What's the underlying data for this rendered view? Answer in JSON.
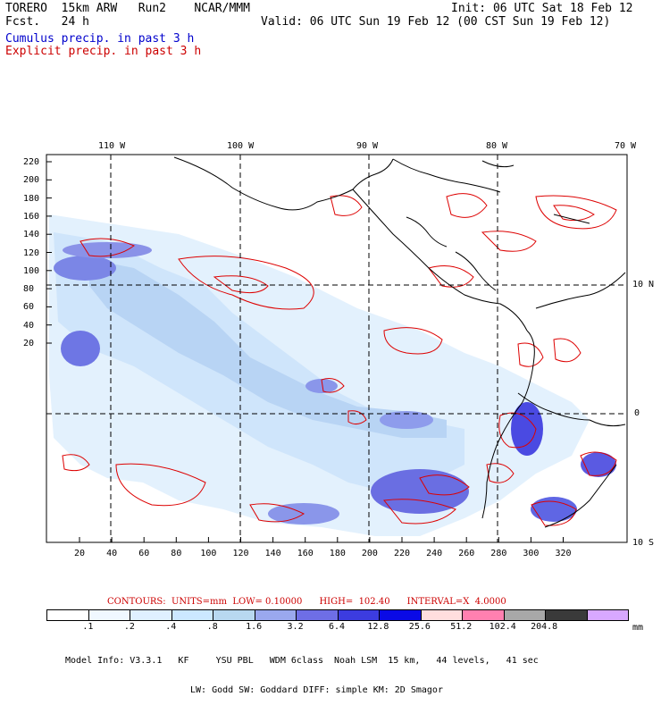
{
  "header": {
    "title_left": "TORERO  15km ARW   Run2    NCAR/MMM",
    "forecast": "Fcst.   24 h",
    "init": "Init: 06 UTC Sat 18 Feb 12",
    "valid": "Valid: 06 UTC Sun 19 Feb 12 (00 CST Sun 19 Feb 12)",
    "line_cumulus": "Cumulus precip. in past 3 h",
    "line_explicit": "Explicit precip. in past 3 h"
  },
  "axes": {
    "top_longitudes": [
      "110 W",
      "100 W",
      "90 W",
      "80 W",
      "70 W"
    ],
    "right_latitudes": [
      "10 N",
      "0",
      "10 S"
    ],
    "y_ticks": [
      "220",
      "200",
      "180",
      "160",
      "140",
      "120",
      "100",
      "80",
      "60",
      "40",
      "20"
    ],
    "x_ticks": [
      "20",
      "40",
      "60",
      "80",
      "100",
      "120",
      "140",
      "160",
      "180",
      "200",
      "220",
      "240",
      "260",
      "280",
      "300",
      "320"
    ]
  },
  "contours": {
    "label": "CONTOURS:  UNITS=mm  LOW= 0.10000      HIGH=  102.40      INTERVAL=X  4.0000"
  },
  "colorbar": {
    "colors": [
      "#ffffff",
      "#f0f8ff",
      "#e0f0ff",
      "#cce8ff",
      "#b8d8f0",
      "#9aa8ee",
      "#6e6ee6",
      "#3c3ce0",
      "#0a0ae6",
      "#ffdede",
      "#ff80b0",
      "#a8a8a8",
      "#3a3a3a",
      "#d8a8ff"
    ],
    "labels": [
      ".1",
      ".2",
      ".4",
      ".8",
      "1.6",
      "3.2",
      "6.4",
      "12.8",
      "25.6",
      "51.2",
      "102.4",
      "204.8"
    ],
    "unit": "mm"
  },
  "model_info": {
    "line1": "Model Info: V3.3.1   KF     YSU PBL   WDM 6class  Noah LSM  15 km,   44 levels,   41 sec",
    "line2": "LW: Godd SW: Goddard DIFF: simple KM: 2D Smagor"
  },
  "colors": {
    "cumulus_text": "#0000cc",
    "explicit_text": "#cc0000",
    "contour_line": "#dd0000",
    "coast_line": "#000000"
  }
}
